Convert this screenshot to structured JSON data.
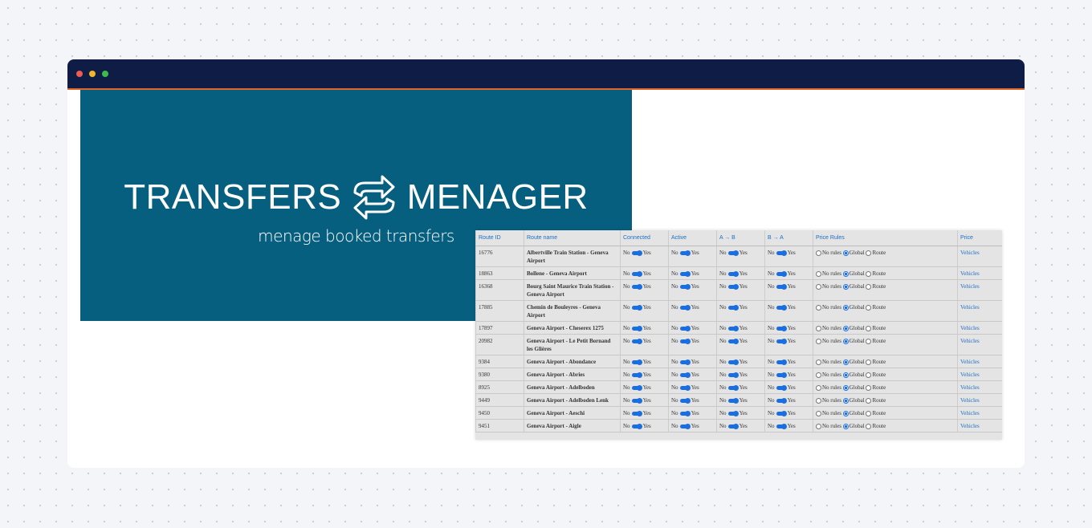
{
  "banner": {
    "title_left": "TRANSFERS",
    "title_right": "MENAGER",
    "subtitle": "menage booked transfers"
  },
  "table": {
    "headers": [
      "Route ID",
      "Route name",
      "Connected",
      "Active",
      "A → B",
      "B → A",
      "Price Rules",
      "Price"
    ],
    "toggle_off": "No",
    "toggle_on": "Yes",
    "price_rule_options": [
      "No rules",
      "Global",
      "Route"
    ],
    "price_link": "Vehicles",
    "rows": [
      [
        "16776",
        "Albertville Train Station - Geneva Airport"
      ],
      [
        "18863",
        "Bollene - Geneva Airport"
      ],
      [
        "16368",
        "Bourg Saint Maurice Train Station - Geneva Airport"
      ],
      [
        "17885",
        "Chemin de Bouleyres - Geneva Airport"
      ],
      [
        "17897",
        "Geneva Airport - Cheserex 1275"
      ],
      [
        "20982",
        "Geneva Airport - Le Petit Bornand les Glières"
      ],
      [
        "9384",
        "Geneva Airport - Abondance"
      ],
      [
        "9380",
        "Geneva Airport - Abries"
      ],
      [
        "8925",
        "Geneva Airport - Adelboden"
      ],
      [
        "9449",
        "Geneva Airport - Adelboden Lenk"
      ],
      [
        "9450",
        "Geneva Airport - Aeschi"
      ],
      [
        "9451",
        "Geneva Airport - Aigle"
      ]
    ]
  }
}
